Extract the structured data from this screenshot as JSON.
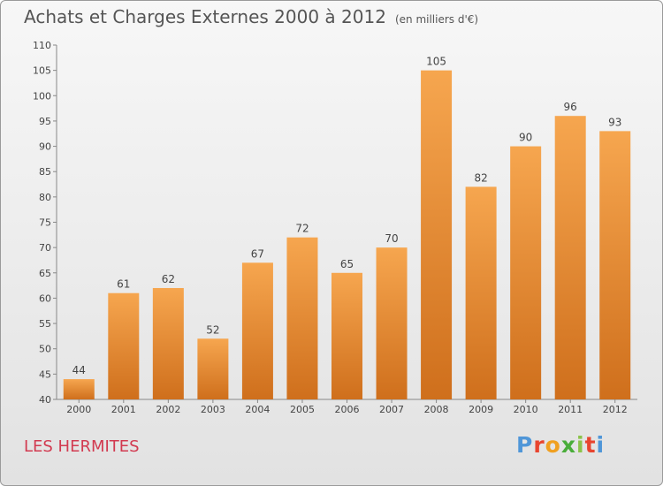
{
  "header": {
    "title": "Achats et Charges Externes 2000 à 2012",
    "subtitle": "(en milliers d'€)"
  },
  "footer": {
    "place": "LES HERMITES",
    "brand": "Proxiti"
  },
  "colors": {
    "bar_light": "#f6a64f",
    "bar_dark": "#cf6f1c",
    "place_text": "#d23a50"
  },
  "chart_data": {
    "type": "bar",
    "title": "Achats et Charges Externes 2000 à 2012",
    "subtitle": "(en milliers d'€)",
    "categories": [
      "2000",
      "2001",
      "2002",
      "2003",
      "2004",
      "2005",
      "2006",
      "2007",
      "2008",
      "2009",
      "2010",
      "2011",
      "2012"
    ],
    "values": [
      44,
      61,
      62,
      52,
      67,
      72,
      65,
      70,
      105,
      82,
      90,
      96,
      93
    ],
    "ylim": [
      40,
      110
    ],
    "yticks": [
      40,
      45,
      50,
      55,
      60,
      65,
      70,
      75,
      80,
      85,
      90,
      95,
      100,
      105,
      110
    ],
    "grid": false,
    "data_labels": true
  }
}
